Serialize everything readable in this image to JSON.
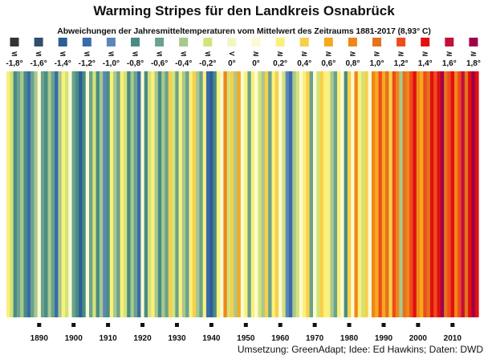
{
  "title": "Warming Stripes für den Landkreis Osnabrück",
  "subtitle": "Abweichungen der Jahresmitteltemperaturen vom Mittelwert des Zeitraums 1881-2017 (8,93° C)",
  "credit": "Umsetzung: GreenAdapt; Idee: Ed Hawkins; Daten: DWD",
  "chart_data": {
    "type": "heatmap",
    "x_start": 1881,
    "x_end": 2017,
    "x_ticks": [
      "1890",
      "1900",
      "1910",
      "1920",
      "1930",
      "1940",
      "1950",
      "1960",
      "1970",
      "1980",
      "1990",
      "2000",
      "2010"
    ],
    "legend": [
      {
        "symbol": "≤",
        "label": "-1,8°",
        "color": "#333333"
      },
      {
        "symbol": "≤",
        "label": "-1,6°",
        "color": "#2f4f6a"
      },
      {
        "symbol": "≤",
        "label": "-1,4°",
        "color": "#2b5f96"
      },
      {
        "symbol": "≤",
        "label": "-1,2°",
        "color": "#3a6ba8"
      },
      {
        "symbol": "≤",
        "label": "-1,0°",
        "color": "#5b87b8"
      },
      {
        "symbol": "≤",
        "label": "-0,8°",
        "color": "#4a8c83"
      },
      {
        "symbol": "≤",
        "label": "-0,6°",
        "color": "#6aa28e"
      },
      {
        "symbol": "≤",
        "label": "-0,4°",
        "color": "#a8c88e"
      },
      {
        "symbol": "≤",
        "label": "-0,2°",
        "color": "#d3e27a"
      },
      {
        "symbol": "<",
        "label": "0°",
        "color": "#f4f6c2"
      },
      {
        "symbol": "≥",
        "label": "0°",
        "color": "#fbfad0"
      },
      {
        "symbol": "≥",
        "label": "0,2°",
        "color": "#fbf07a"
      },
      {
        "symbol": "≥",
        "label": "0,4°",
        "color": "#f7d04a"
      },
      {
        "symbol": "≥",
        "label": "0,6°",
        "color": "#f5aa1e"
      },
      {
        "symbol": "≥",
        "label": "0,8°",
        "color": "#f0861a"
      },
      {
        "symbol": "≥",
        "label": "1,0°",
        "color": "#e4731e"
      },
      {
        "symbol": "≥",
        "label": "1,2°",
        "color": "#f04a1e"
      },
      {
        "symbol": "≥",
        "label": "1,4°",
        "color": "#e01010"
      },
      {
        "symbol": "≥",
        "label": "1,6°",
        "color": "#c2103a"
      },
      {
        "symbol": "≥",
        "label": "1,8°",
        "color": "#a0004a"
      }
    ],
    "categories": [
      "≥ 0,2°",
      "≤ -0,2°",
      "≤ -0,8°",
      "≤ -0,6°",
      "≤ -0,4°",
      "≤ -0,8°",
      "≤ -1,2°",
      "≤ -0,6°",
      "≤ -0,4°",
      "≥ 0°",
      "≤ -0,6°",
      "≤ -0,8°",
      "≤ -0,4°",
      "≤ -0,6°",
      "≤ -1,2°",
      "≤ -0,4°",
      "≥ 0,2°",
      "≤ -0,2°",
      "≥ 0°",
      "≤ -0,6°",
      "≤ -0,8°",
      "≤ -1,4°",
      "≤ -0,8°",
      "≥ 0°",
      "≤ -0,6°",
      "≤ -0,2°",
      "≤ -0,8°",
      "≤ -0,4°",
      "≤ -1,0°",
      "≤ -0,8°",
      "≥ 0,2°",
      "≤ -0,4°",
      "≤ -0,6°",
      "≥ 0,2°",
      "≤ -0,2°",
      "≤ -0,8°",
      "≤ -0,4°",
      "≤ -0,6°",
      "≤ -1,2°",
      "≥ 0°",
      "≤ -0,8°",
      "≤ -0,2°",
      "≥ 0,2°",
      "≤ -0,4°",
      "≤ -0,8°",
      "≤ -0,4°",
      "≤ -0,6°",
      "≥ 0,4°",
      "≤ -0,2°",
      "≤ -0,6°",
      "≥ 0,2°",
      "≤ -0,4°",
      "≤ -0,6°",
      "≥ 0,2°",
      "≥ 0,4°",
      "≤ -0,4°",
      "≤ -0,6°",
      "≥ 0,2°",
      "≤ -1,2°",
      "≤ -1,4°",
      "≤ -0,8°",
      "≥ 0,2°",
      "≥ 0°",
      "≥ 0,8°",
      "≤ -0,2°",
      "≥ 0,4°",
      "≤ -0,4°",
      "≥ 0,6°",
      "≥ 0°",
      "≥ 0,2°",
      "≤ -0,6°",
      "≥ 0,2°",
      "≥ 0°",
      "≤ -0,2°",
      "≤ -0,4°",
      "≥ 0,4°",
      "≤ -0,6°",
      "≥ 0,2°",
      "≥ 0,4°",
      "≥ 0°",
      "≤ -0,2°",
      "≤ -1,0°",
      "≤ -1,2°",
      "≤ -0,4°",
      "≤ -0,2°",
      "≥ 0°",
      "≥ 0,2°",
      "≥ 0,4°",
      "≤ -0,6°",
      "≥ 0°",
      "≤ -0,2°",
      "≥ 0,4°",
      "≥ 0,2°",
      "≥ 0,2°",
      "≤ -0,4°",
      "≤ -0,6°",
      "≥ 0,2°",
      "≥ 0°",
      "≤ -0,8°",
      "≥ 0,4°",
      "≥ 0°",
      "≥ 0,8°",
      "≥ 0,2°",
      "≤ -0,2°",
      "≥ 0,4°",
      "≥ 0°",
      "≥ 0,8°",
      "≥ 0,6°",
      "≥ 1,2°",
      "≥ 0,6°",
      "≥ 1,0°",
      "≥ 0,4°",
      "≥ 1,2°",
      "≥ 0,8°",
      "≤ -0,4°",
      "≥ 1,0°",
      "≥ 0,8°",
      "≥ 1,2°",
      "≥ 1,4°",
      "≥ 0,8°",
      "≥ 0,6°",
      "≥ 1,2°",
      "≥ 1,0°",
      "≥ 1,4°",
      "≥ 1,2°",
      "≥ 1,4°",
      "≥ 1,8°",
      "≥ 1,0°",
      "≥ 1,2°",
      "≥ 1,4°",
      "≥ 0,8°",
      "≥ 1,2°",
      "≥ 1,6°",
      "≥ 1,0°",
      "≥ 1,4°",
      "≥ 1,8°",
      "≥ 1,4°"
    ],
    "grid": false,
    "legend_placement": "top"
  }
}
